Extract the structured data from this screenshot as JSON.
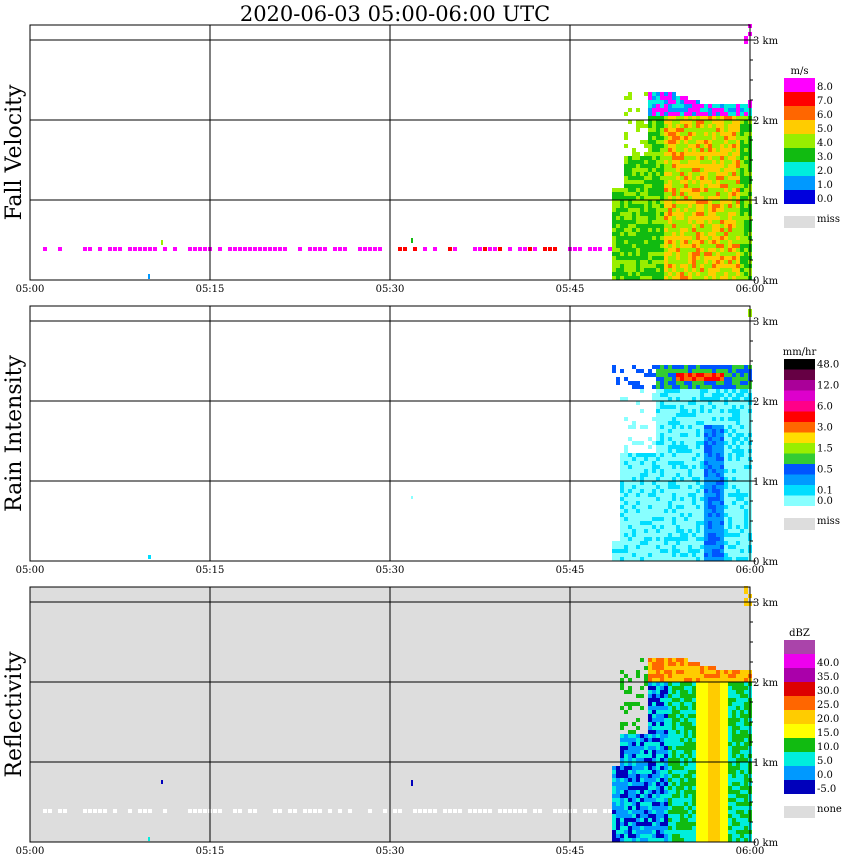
{
  "title": "2020-06-03   05:00-06:00 UTC",
  "chart_data": [
    {
      "type": "heatmap",
      "ylabel": "Fall Velocity",
      "unit": "m/s",
      "x_ticks": [
        "05:00",
        "05:15",
        "05:30",
        "05:45",
        "06:00"
      ],
      "y_ticks": [
        "0 km",
        "1 km",
        "2 km",
        "3 km"
      ],
      "ylim": [
        0,
        3.2
      ],
      "legend_labels": [
        "8.0",
        "7.0",
        "6.0",
        "5.0",
        "4.0",
        "3.0",
        "2.0",
        "1.0",
        "0.0"
      ],
      "legend_colors": [
        "#ff00ff",
        "#ff0000",
        "#ff6600",
        "#ffcc00",
        "#99ee00",
        "#11bb11",
        "#00eedd",
        "#0099ff",
        "#0000dd"
      ],
      "missing_label": "miss",
      "missing_color": "#dddddd",
      "background": "#ffffff"
    },
    {
      "type": "heatmap",
      "ylabel": "Rain Intensity",
      "unit": "mm/hr",
      "x_ticks": [
        "05:00",
        "05:15",
        "05:30",
        "05:45",
        "06:00"
      ],
      "y_ticks": [
        "0 km",
        "1 km",
        "2 km",
        "3 km"
      ],
      "ylim": [
        0,
        3.2
      ],
      "legend_labels": [
        "48.0",
        "",
        "12.0",
        "",
        "6.0",
        "",
        "3.0",
        "",
        "1.5",
        "",
        "0.5",
        "",
        "0.1",
        "0.0"
      ],
      "legend_colors": [
        "#000000",
        "#660044",
        "#aa0099",
        "#dd00cc",
        "#ff0088",
        "#ff0000",
        "#ff6600",
        "#ffdd00",
        "#99ee00",
        "#33cc33",
        "#0055ff",
        "#0099ff",
        "#00ddff",
        "#88ffff"
      ],
      "missing_label": "miss",
      "missing_color": "#dddddd",
      "background": "#ffffff"
    },
    {
      "type": "heatmap",
      "ylabel": "Reflectivity",
      "unit": "dBZ",
      "x_ticks": [
        "05:00",
        "05:15",
        "05:30",
        "05:45",
        "06:00"
      ],
      "y_ticks": [
        "0 km",
        "1 km",
        "2 km",
        "3 km"
      ],
      "ylim": [
        0,
        3.2
      ],
      "legend_labels": [
        "",
        "40.0",
        "35.0",
        "30.0",
        "25.0",
        "20.0",
        "15.0",
        "10.0",
        "5.0",
        "0.0",
        "-5.0"
      ],
      "legend_colors": [
        "#aa44aa",
        "#ee00ee",
        "#aa00aa",
        "#dd0000",
        "#ff6600",
        "#ffcc00",
        "#ffff00",
        "#11bb11",
        "#00eedd",
        "#0099ff",
        "#0000bb"
      ],
      "missing_label": "none",
      "missing_color": "#dddddd",
      "background": "#dddddd"
    }
  ]
}
